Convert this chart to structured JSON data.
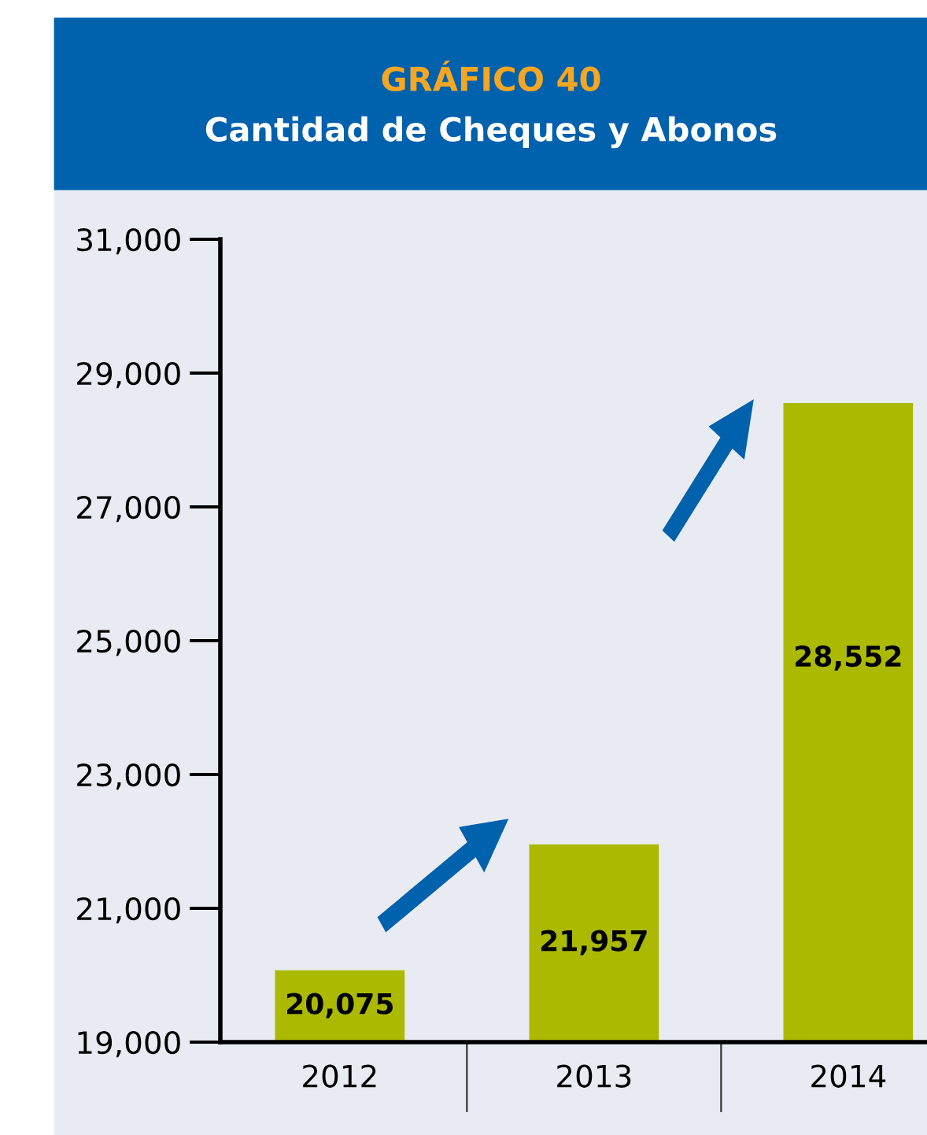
{
  "chart_data": {
    "type": "bar",
    "title": "GRÁFICO 40",
    "subtitle": "Cantidad de Cheques y Abonos",
    "categories": [
      "2012",
      "2013",
      "2014"
    ],
    "values": [
      20075,
      21957,
      28552
    ],
    "color": "#abba00",
    "value_labels": [
      "20,075",
      "21,957",
      "28,552"
    ],
    "ylim": [
      19000,
      31000
    ],
    "yticks": [
      {
        "value": 19000,
        "label": "19,000"
      },
      {
        "value": 21000,
        "label": "21,000"
      },
      {
        "value": 23000,
        "label": "23,000"
      },
      {
        "value": 25000,
        "label": "25,000"
      },
      {
        "value": 27000,
        "label": "27,000"
      },
      {
        "value": 29000,
        "label": "29,000"
      },
      {
        "value": 31000,
        "label": "31,000"
      }
    ],
    "grid": false,
    "legend": false
  }
}
